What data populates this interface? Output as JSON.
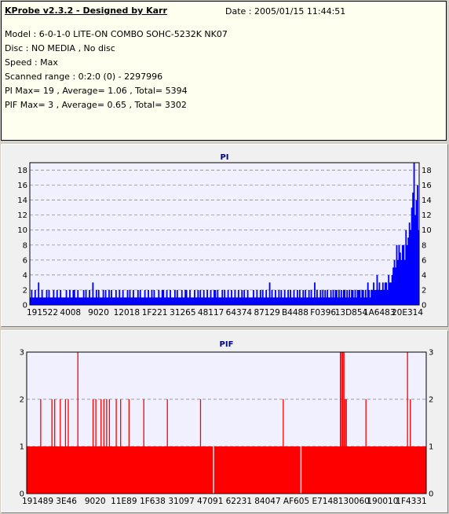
{
  "header": {
    "title": "KProbe v2.3.2 - Designed by Karr",
    "date": "Date : 2005/01/15 11:44:51",
    "lines": [
      "Model : 6-0-1-0 LITE-ON COMBO SOHC-5232K NK07",
      "Disc : NO MEDIA , No disc",
      "Speed : Max",
      "Scanned range : 0:2:0 (0) - 2297996",
      "PI Max= 19 , Average= 1.06 , Total= 5394",
      "PIF Max= 3 , Average= 0.65 , Total= 3302"
    ]
  },
  "chart_data": [
    {
      "type": "bar",
      "title": "PI",
      "ylim": [
        0,
        19
      ],
      "yticks": [
        0,
        2,
        4,
        6,
        8,
        10,
        12,
        14,
        16,
        18
      ],
      "xtick_labels": [
        "191522",
        "4008",
        "9020",
        "12018",
        "1F221",
        "31265",
        "48117",
        "64374",
        "87129",
        "B4488",
        "F0396",
        "13D854",
        "1A6483",
        "20E314"
      ],
      "grid": true,
      "color": "#0000ff",
      "values": [
        1,
        2,
        1,
        1,
        2,
        1,
        1,
        3,
        1,
        1,
        2,
        1,
        1,
        1,
        2,
        1,
        2,
        1,
        1,
        1,
        2,
        1,
        1,
        2,
        1,
        1,
        2,
        1,
        1,
        1,
        1,
        2,
        1,
        1,
        2,
        1,
        1,
        2,
        2,
        1,
        1,
        2,
        1,
        1,
        1,
        1,
        2,
        1,
        2,
        1,
        1,
        2,
        1,
        1,
        3,
        1,
        1,
        2,
        1,
        2,
        1,
        1,
        1,
        2,
        1,
        2,
        1,
        1,
        2,
        1,
        2,
        1,
        1,
        1,
        2,
        1,
        1,
        2,
        1,
        1,
        2,
        1,
        1,
        1,
        2,
        1,
        2,
        1,
        1,
        2,
        1,
        1,
        1,
        2,
        1,
        2,
        1,
        1,
        1,
        2,
        1,
        1,
        2,
        1,
        1,
        2,
        1,
        2,
        1,
        1,
        1,
        2,
        1,
        1,
        2,
        2,
        1,
        1,
        2,
        1,
        1,
        2,
        1,
        1,
        1,
        2,
        1,
        2,
        1,
        1,
        1,
        2,
        1,
        1,
        2,
        2,
        1,
        1,
        2,
        1,
        1,
        1,
        2,
        1,
        1,
        2,
        1,
        2,
        1,
        1,
        2,
        1,
        1,
        2,
        1,
        1,
        2,
        1,
        1,
        2,
        2,
        1,
        2,
        1,
        1,
        1,
        2,
        1,
        2,
        1,
        1,
        2,
        1,
        1,
        2,
        1,
        1,
        2,
        1,
        1,
        2,
        1,
        1,
        2,
        1,
        2,
        1,
        1,
        2,
        1,
        1,
        1,
        1,
        2,
        1,
        1,
        2,
        1,
        1,
        2,
        1,
        2,
        1,
        1,
        2,
        1,
        1,
        3,
        1,
        2,
        1,
        1,
        2,
        1,
        1,
        2,
        1,
        2,
        1,
        1,
        2,
        1,
        1,
        2,
        1,
        2,
        1,
        1,
        2,
        1,
        1,
        2,
        1,
        2,
        1,
        1,
        2,
        1,
        2,
        1,
        1,
        2,
        1,
        2,
        1,
        1,
        3,
        1,
        2,
        1,
        1,
        2,
        1,
        2,
        1,
        2,
        1,
        2,
        1,
        1,
        2,
        1,
        2,
        1,
        2,
        2,
        1,
        2,
        1,
        2,
        1,
        2,
        2,
        1,
        2,
        1,
        2,
        1,
        2,
        2,
        1,
        2,
        1,
        2,
        2,
        2,
        1,
        2,
        2,
        1,
        2,
        1,
        3,
        2,
        1,
        2,
        2,
        3,
        2,
        2,
        4,
        2,
        3,
        2,
        2,
        3,
        2,
        3,
        3,
        2,
        4,
        3,
        3,
        4,
        5,
        6,
        5,
        8,
        6,
        8,
        7,
        6,
        8,
        8,
        6,
        10,
        8,
        9,
        11,
        10,
        13,
        15,
        19,
        12,
        14,
        16,
        10
      ],
      "note": ""
    },
    {
      "type": "bar",
      "title": "PIF",
      "ylim": [
        0,
        3
      ],
      "yticks": [
        0,
        1,
        2,
        3
      ],
      "xtick_labels": [
        "191489",
        "3E46",
        "9020",
        "11E89",
        "1F638",
        "31097",
        "47091",
        "62231",
        "84047",
        "AF605",
        "E7148",
        "130060",
        "190010",
        "1F4331"
      ],
      "grid": true,
      "color": "#ff0000",
      "base_value": 1,
      "base_ranges": [
        [
          0,
          0.466
        ],
        [
          0.469,
          0.685
        ],
        [
          0.688,
          1.0
        ]
      ],
      "spikes": [
        {
          "x": 0.035,
          "value": 2
        },
        {
          "x": 0.063,
          "value": 2
        },
        {
          "x": 0.07,
          "value": 2
        },
        {
          "x": 0.084,
          "value": 2
        },
        {
          "x": 0.097,
          "value": 2
        },
        {
          "x": 0.104,
          "value": 2
        },
        {
          "x": 0.128,
          "value": 3
        },
        {
          "x": 0.166,
          "value": 2
        },
        {
          "x": 0.173,
          "value": 2
        },
        {
          "x": 0.186,
          "value": 2
        },
        {
          "x": 0.193,
          "value": 2
        },
        {
          "x": 0.2,
          "value": 2
        },
        {
          "x": 0.207,
          "value": 2
        },
        {
          "x": 0.224,
          "value": 2
        },
        {
          "x": 0.235,
          "value": 2
        },
        {
          "x": 0.256,
          "value": 2
        },
        {
          "x": 0.293,
          "value": 2
        },
        {
          "x": 0.352,
          "value": 2
        },
        {
          "x": 0.435,
          "value": 2
        },
        {
          "x": 0.642,
          "value": 2
        },
        {
          "x": 0.785,
          "value": 3
        },
        {
          "x": 0.788,
          "value": 3
        },
        {
          "x": 0.791,
          "value": 3
        },
        {
          "x": 0.794,
          "value": 3
        },
        {
          "x": 0.797,
          "value": 2
        },
        {
          "x": 0.8,
          "value": 2
        },
        {
          "x": 0.849,
          "value": 2
        },
        {
          "x": 0.953,
          "value": 3
        },
        {
          "x": 0.96,
          "value": 2
        }
      ]
    }
  ]
}
